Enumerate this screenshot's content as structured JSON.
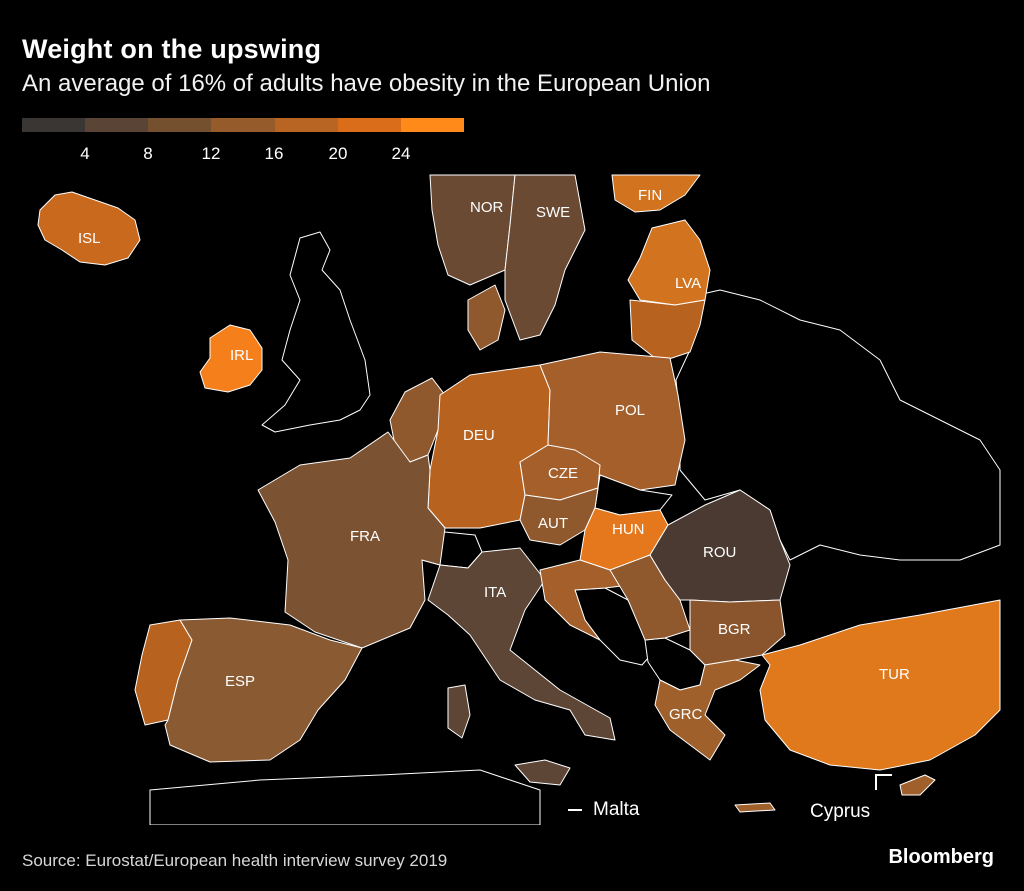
{
  "header": {
    "title": "Weight on the upswing",
    "subtitle": "An average of 16% of adults have obesity in the European Union"
  },
  "legend": {
    "colors": [
      "#3a3633",
      "#5a4435",
      "#75502f",
      "#955b2a",
      "#b86423",
      "#d96d1a",
      "#ff8a1a"
    ],
    "ticks": [
      "4",
      "8",
      "12",
      "16",
      "20",
      "24"
    ]
  },
  "map": {
    "countries": [
      {
        "code": "ISL",
        "label": "ISL",
        "color": "#c9691e"
      },
      {
        "code": "IRL",
        "label": "IRL",
        "color": "#f57f1a"
      },
      {
        "code": "NOR",
        "label": "NOR",
        "color": "#6a4a33"
      },
      {
        "code": "SWE",
        "label": "SWE",
        "color": "#6a4a33"
      },
      {
        "code": "FIN",
        "label": "FIN",
        "color": "#d2731f"
      },
      {
        "code": "LVA",
        "label": "LVA",
        "color": "#d2731f"
      },
      {
        "code": "DEU",
        "label": "DEU",
        "color": "#b8621f"
      },
      {
        "code": "POL",
        "label": "POL",
        "color": "#a45f2b"
      },
      {
        "code": "CZE",
        "label": "CZE",
        "color": "#a45f2b"
      },
      {
        "code": "AUT",
        "label": "AUT",
        "color": "#8f582d"
      },
      {
        "code": "HUN",
        "label": "HUN",
        "color": "#e5771c"
      },
      {
        "code": "FRA",
        "label": "FRA",
        "color": "#7b5232"
      },
      {
        "code": "ITA",
        "label": "ITA",
        "color": "#5e4636"
      },
      {
        "code": "ROU",
        "label": "ROU",
        "color": "#4b3a31"
      },
      {
        "code": "BGR",
        "label": "BGR",
        "color": "#8a552d"
      },
      {
        "code": "ESP",
        "label": "ESP",
        "color": "#8a5a32"
      },
      {
        "code": "GRC",
        "label": "GRC",
        "color": "#a0602b"
      },
      {
        "code": "TUR",
        "label": "TUR",
        "color": "#e0781c"
      }
    ],
    "callouts": {
      "malta": "Malta",
      "cyprus": "Cyprus"
    }
  },
  "footer": {
    "source": "Source: Eurostat/European health interview survey 2019",
    "brand": "Bloomberg"
  }
}
